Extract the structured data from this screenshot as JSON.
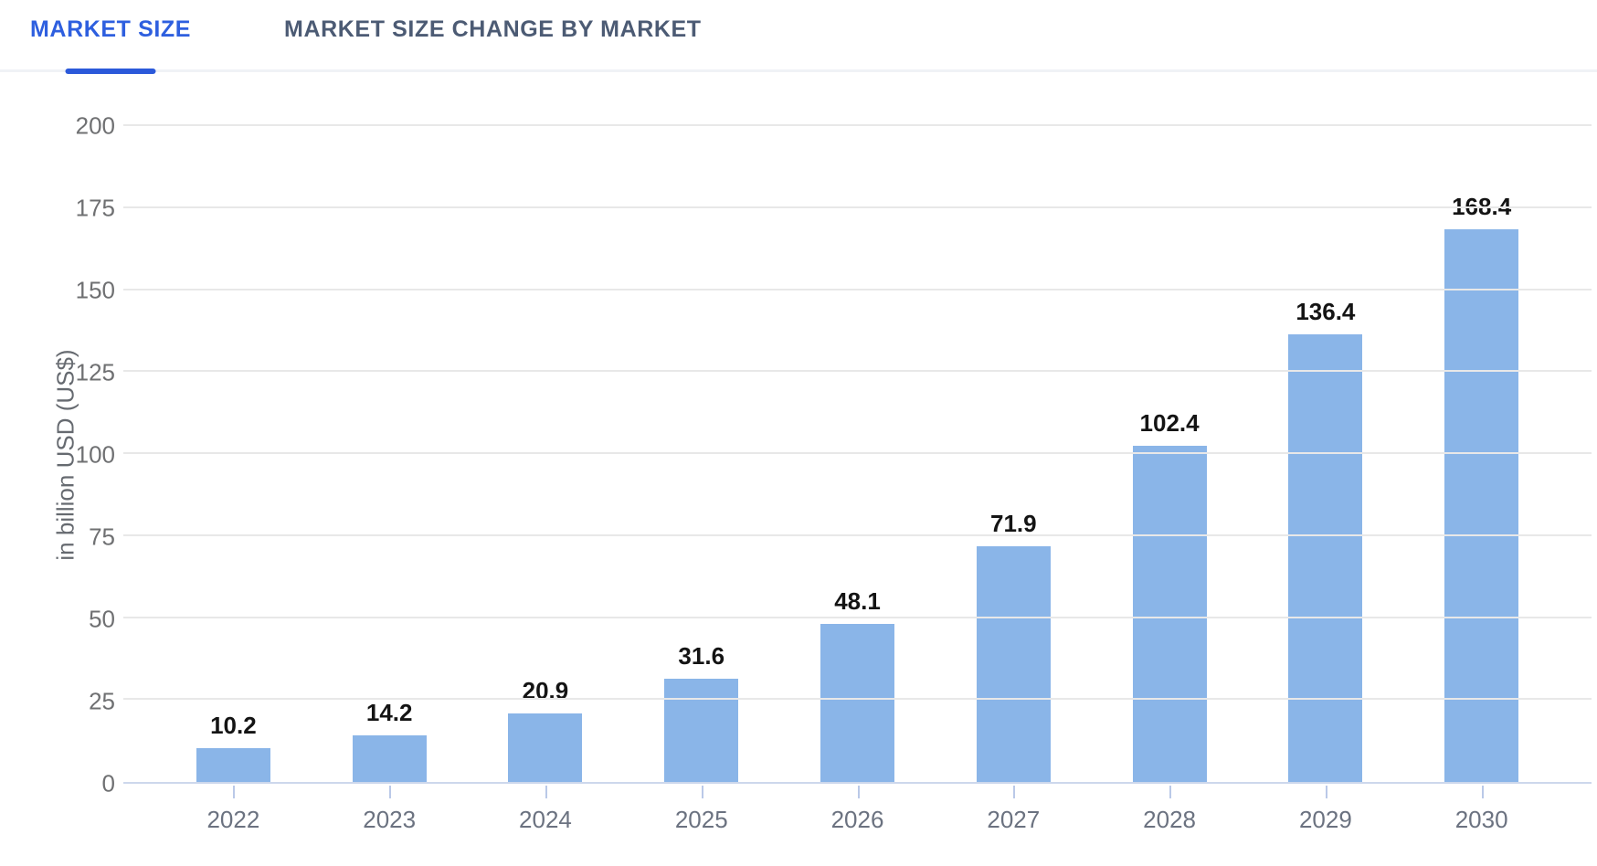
{
  "tabs": [
    {
      "label": "MARKET SIZE",
      "active": true
    },
    {
      "label": "MARKET SIZE CHANGE BY MARKET",
      "active": false
    }
  ],
  "colors": {
    "bar": "#8ab5e8",
    "active_tab": "#2e5fdf",
    "tab_underline": "#2b59da",
    "inactive_tab": "#4c5b74",
    "gridline": "#e8e8e8",
    "axis_line": "#cdd8ec",
    "tick_mark": "#bac9e8",
    "y_tick_label": "#6f7072",
    "x_tick_label": "#6b7280",
    "value_label": "#141414"
  },
  "chart_data": {
    "type": "bar",
    "title": "",
    "categories": [
      "2022",
      "2023",
      "2024",
      "2025",
      "2026",
      "2027",
      "2028",
      "2029",
      "2030"
    ],
    "values": [
      10.2,
      14.2,
      20.9,
      31.6,
      48.1,
      71.9,
      102.4,
      136.4,
      168.4
    ],
    "value_labels": [
      "10.2",
      "14.2",
      "20.9",
      "31.6",
      "48.1",
      "71.9",
      "102.4",
      "136.4",
      "168.4"
    ],
    "xlabel": "",
    "ylabel": "in billion USD (US$)",
    "ylim": [
      0,
      200
    ],
    "yticks": [
      0,
      25,
      50,
      75,
      100,
      125,
      150,
      175,
      200
    ],
    "grid": true,
    "legend_position": "none",
    "bar_color": "#8ab5e8"
  }
}
